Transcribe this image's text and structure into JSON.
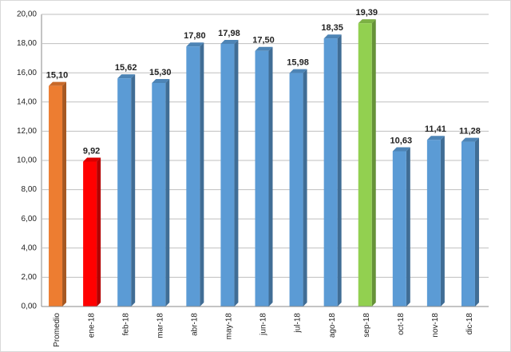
{
  "chart_data": {
    "type": "bar3d",
    "categories": [
      "Promedio",
      "ene-18",
      "feb-18",
      "mar-18",
      "abr-18",
      "may-18",
      "jun-18",
      "jul-18",
      "ago-18",
      "sep-18",
      "oct-18",
      "nov-18",
      "dic-18"
    ],
    "values": [
      15.1,
      9.92,
      15.62,
      15.3,
      17.8,
      17.98,
      17.5,
      15.98,
      18.35,
      19.39,
      10.63,
      11.41,
      11.28
    ],
    "value_labels": [
      "15,10",
      "9,92",
      "15,62",
      "15,30",
      "17,80",
      "17,98",
      "17,50",
      "15,98",
      "18,35",
      "19,39",
      "10,63",
      "11,41",
      "11,28"
    ],
    "colors": [
      "#ed7d31",
      "#ff0000",
      "#5b9bd5",
      "#5b9bd5",
      "#5b9bd5",
      "#5b9bd5",
      "#5b9bd5",
      "#5b9bd5",
      "#5b9bd5",
      "#92d050",
      "#5b9bd5",
      "#5b9bd5",
      "#5b9bd5"
    ],
    "ylim": [
      0,
      20
    ],
    "yticks": [
      {
        "value": 0,
        "label": "0,00"
      },
      {
        "value": 2,
        "label": "2,00"
      },
      {
        "value": 4,
        "label": "4,00"
      },
      {
        "value": 6,
        "label": "6,00"
      },
      {
        "value": 8,
        "label": "8,00"
      },
      {
        "value": 10,
        "label": "10,00"
      },
      {
        "value": 12,
        "label": "12,00"
      },
      {
        "value": 14,
        "label": "14,00"
      },
      {
        "value": 16,
        "label": "16,00"
      },
      {
        "value": 18,
        "label": "18,00"
      },
      {
        "value": 20,
        "label": "20,00"
      }
    ],
    "grid": true
  }
}
